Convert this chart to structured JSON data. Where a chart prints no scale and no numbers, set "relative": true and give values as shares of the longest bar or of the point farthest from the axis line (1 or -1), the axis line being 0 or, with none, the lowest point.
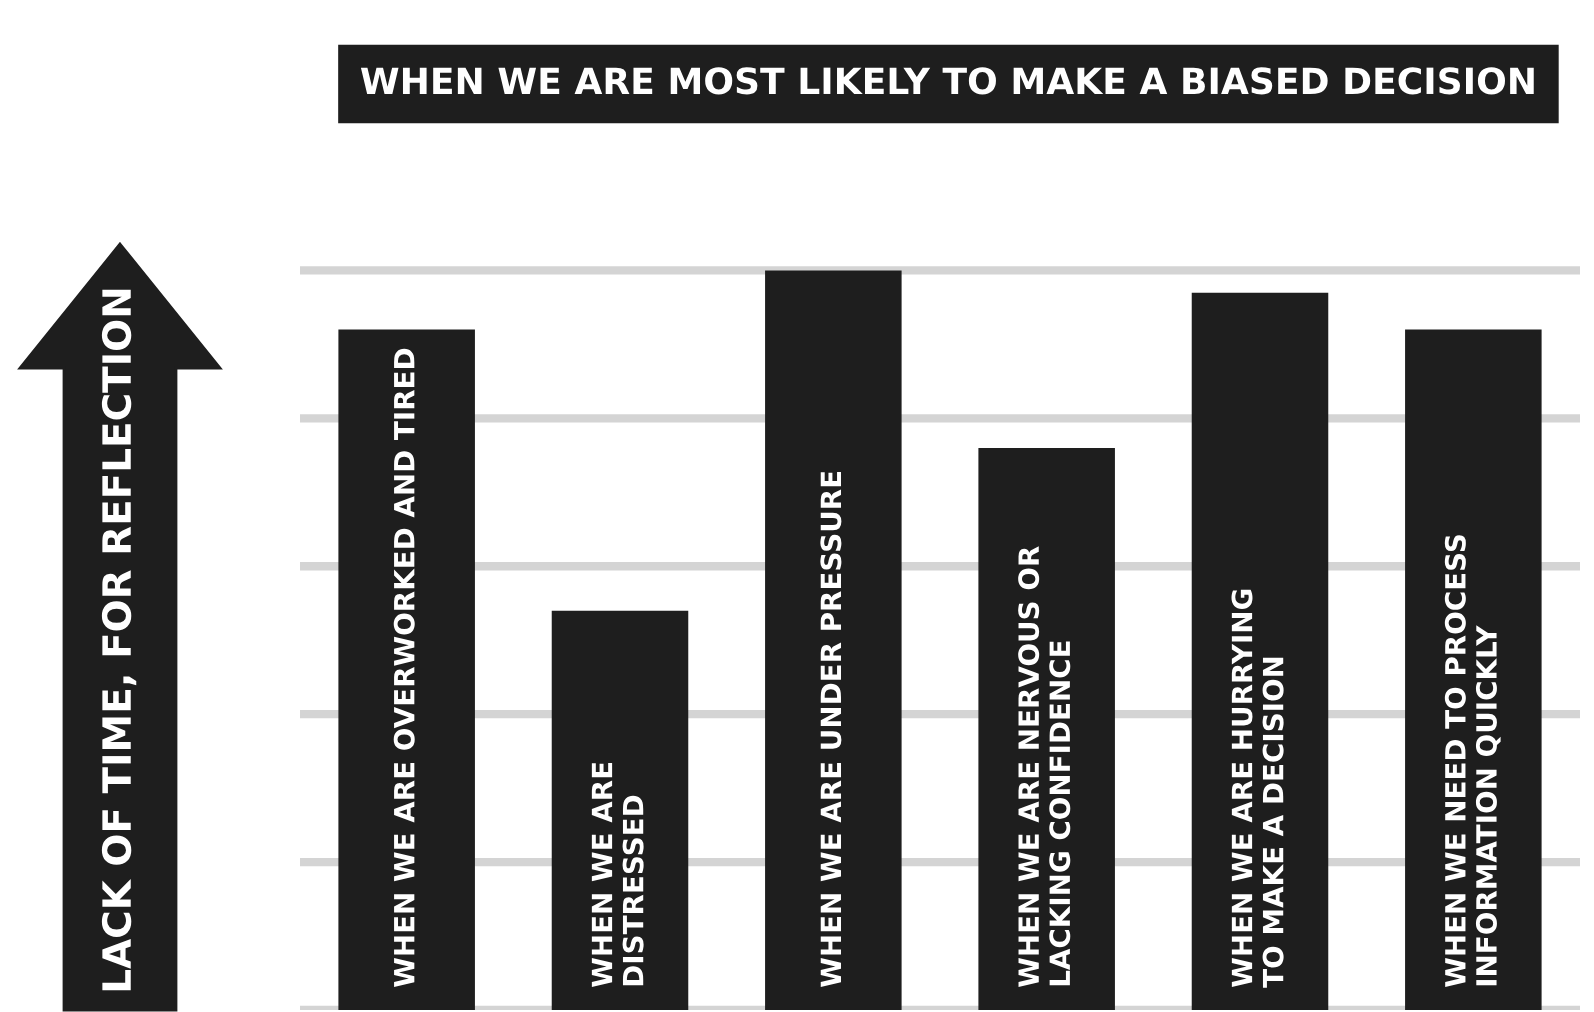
{
  "chart_data": {
    "type": "bar",
    "title": "WHEN WE ARE MOST LIKELY TO MAKE A BIASED DECISION",
    "ylabel": "LACK OF TIME, FOR REFLECTION",
    "categories": [
      "WHEN WE ARE OVERWORKED AND TIRED",
      "WHEN WE ARE\nDISTRESSED",
      "WHEN WE ARE UNDER PRESSURE",
      "WHEN WE ARE NERVOUS OR\nLACKING CONFIDENCE",
      "WHEN WE ARE HURRYING\nTO MAKE A DECISION",
      "WHEN WE NEED TO PROCESS\nINFORMATION QUICKLY"
    ],
    "values": [
      0.92,
      0.54,
      1,
      0.76,
      0.97,
      0.92
    ],
    "color": "#1e1e1e",
    "relative": true,
    "grid": "y"
  }
}
